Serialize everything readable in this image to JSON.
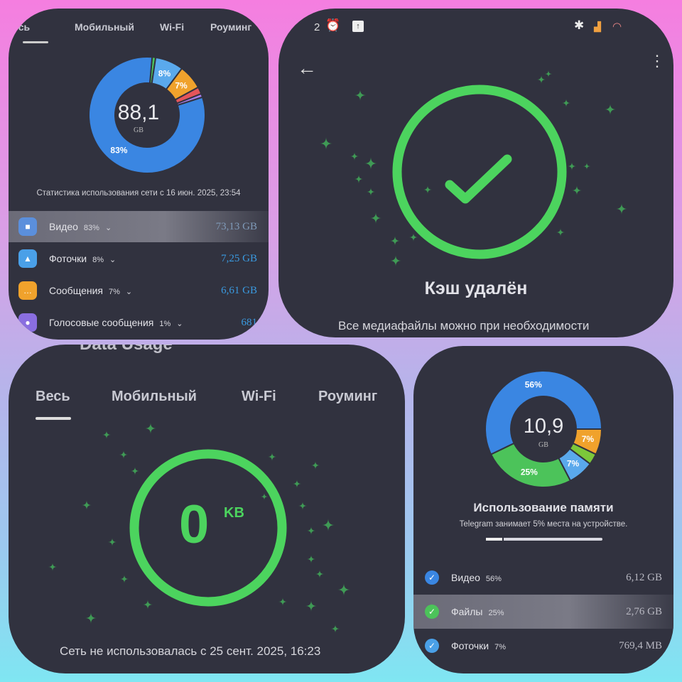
{
  "panel1": {
    "tabs": [
      "Весь",
      "Мобильный",
      "Wi-Fi",
      "Роуминг"
    ],
    "total": "88,1",
    "unit": "GB",
    "chart_data": {
      "type": "pie",
      "values": [
        1,
        8,
        7,
        2,
        1,
        83
      ],
      "labels": [
        "",
        "8%",
        "7%",
        "",
        "",
        "83%"
      ],
      "colors": [
        "#4cc35a",
        "#5aa9ec",
        "#f0a22c",
        "#e4555a",
        "#a77ce8",
        "#3a86e2"
      ]
    },
    "caption": "Статистика использования сети с 16 июн. 2025, 23:54",
    "rows": [
      {
        "label": "Видео",
        "pct": "83%",
        "value": "73,13 GB",
        "icon": "video-icon",
        "color": "#5b8fdc"
      },
      {
        "label": "Фоточки",
        "pct": "8%",
        "value": "7,25 GB",
        "icon": "photo-icon",
        "color": "#4aa0e8"
      },
      {
        "label": "Сообщения",
        "pct": "7%",
        "value": "6,61 GB",
        "icon": "message-icon",
        "color": "#f0a22c"
      },
      {
        "label": "Голосовые сообщения",
        "pct": "1%",
        "value": "681",
        "icon": "mic-icon",
        "color": "#8a6ee0"
      }
    ]
  },
  "panel2": {
    "status_time": "2",
    "title": "Кэш удалён",
    "subtitle": "Все медиафайлы можно при необходимости",
    "accent": "#4cd45e"
  },
  "panel3": {
    "header": "Data Usage",
    "tabs": [
      "Весь",
      "Мобильный",
      "Wi-Fi",
      "Роуминг"
    ],
    "value": "0",
    "unit": "KB",
    "caption": "Сеть не использовалась с 25 сент. 2025, 16:23"
  },
  "panel4": {
    "total": "10,9",
    "unit": "GB",
    "chart_data": {
      "type": "pie",
      "values": [
        7,
        3,
        7,
        25,
        56
      ],
      "labels": [
        "7%",
        "",
        "7%",
        "25%",
        "56%"
      ],
      "colors": [
        "#f0a22c",
        "#7cc83a",
        "#5aa9ec",
        "#4cc35a",
        "#3a86e2"
      ]
    },
    "title": "Использование памяти",
    "subtitle": "Telegram занимает 5% места на устройстве.",
    "device_usage_percent": 5,
    "rows": [
      {
        "label": "Видео",
        "pct": "56%",
        "value": "6,12 GB",
        "color": "#3a86e2"
      },
      {
        "label": "Файлы",
        "pct": "25%",
        "value": "2,76 GB",
        "color": "#4cc35a"
      },
      {
        "label": "Фоточки",
        "pct": "7%",
        "value": "769,4 MB",
        "color": "#4aa0e8"
      }
    ]
  }
}
